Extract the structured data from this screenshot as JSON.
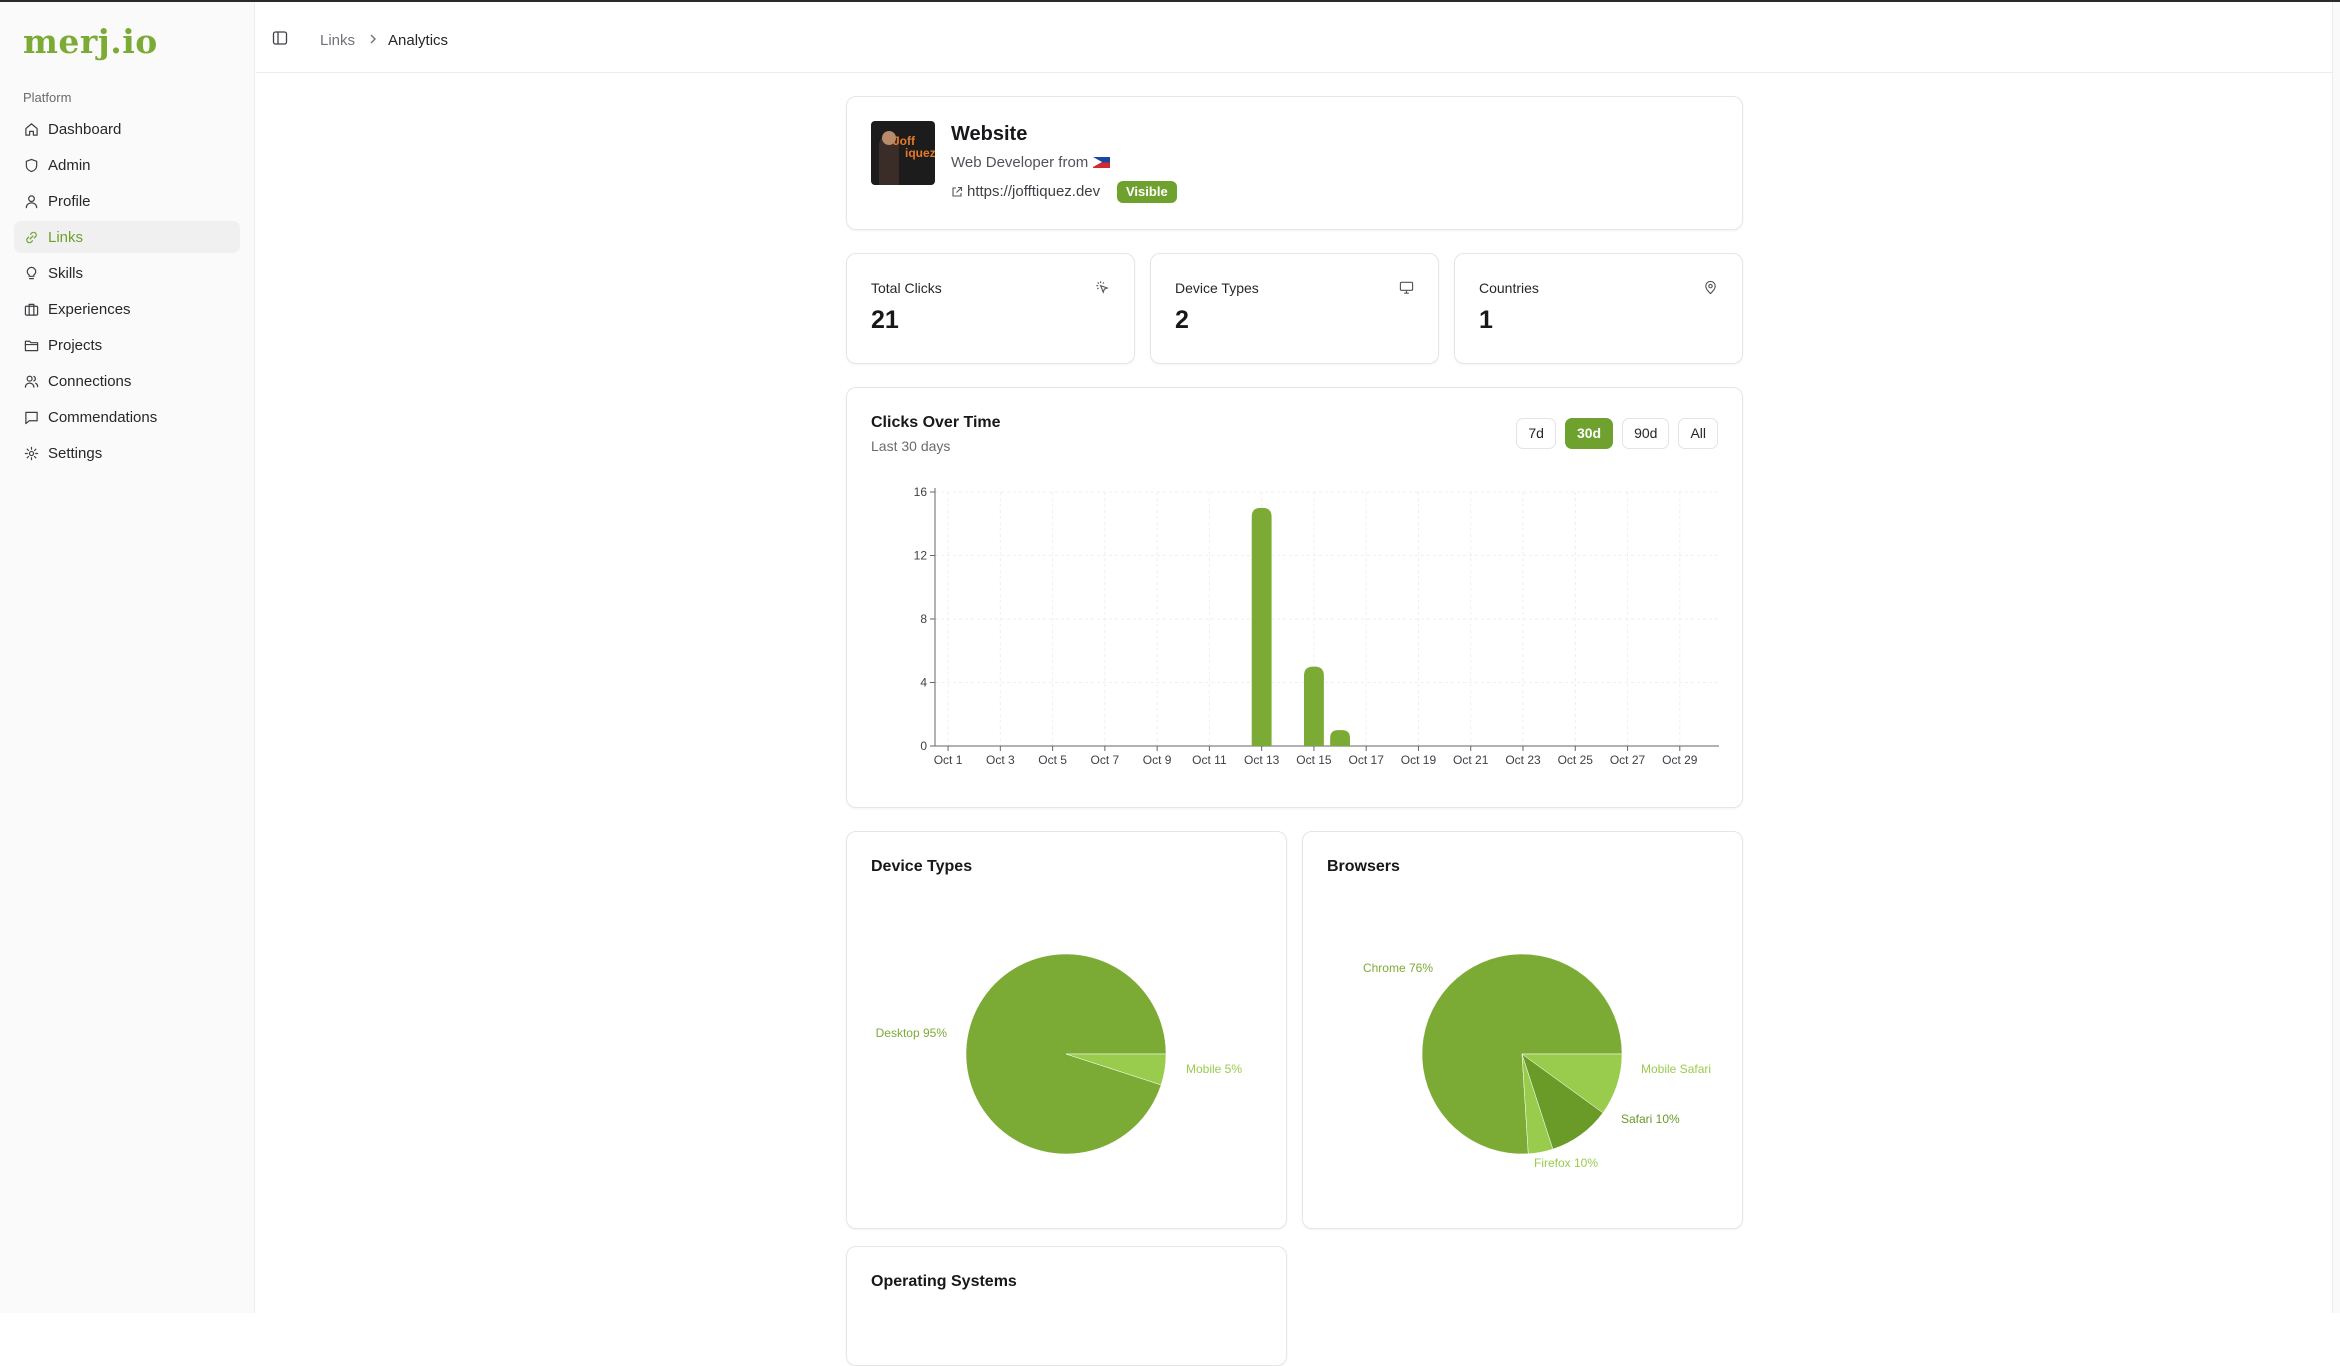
{
  "app": {
    "logo": "merj.io"
  },
  "sidebar": {
    "group_label": "Platform",
    "items": [
      {
        "label": "Dashboard",
        "icon": "home-icon",
        "active": false
      },
      {
        "label": "Admin",
        "icon": "shield-icon",
        "active": false
      },
      {
        "label": "Profile",
        "icon": "user-icon",
        "active": false
      },
      {
        "label": "Links",
        "icon": "link-icon",
        "active": true
      },
      {
        "label": "Skills",
        "icon": "lightbulb-icon",
        "active": false
      },
      {
        "label": "Experiences",
        "icon": "briefcase-icon",
        "active": false
      },
      {
        "label": "Projects",
        "icon": "folder-icon",
        "active": false
      },
      {
        "label": "Connections",
        "icon": "users-icon",
        "active": false
      },
      {
        "label": "Commendations",
        "icon": "message-icon",
        "active": false
      },
      {
        "label": "Settings",
        "icon": "gear-icon",
        "active": false
      }
    ]
  },
  "breadcrumb": {
    "parent": "Links",
    "current": "Analytics"
  },
  "profile": {
    "title": "Website",
    "subtitle": "Web Developer from",
    "url": "https://jofftiquez.dev",
    "badge": "Visible",
    "avatar_text_1": "Joff",
    "avatar_text_2": "iquez"
  },
  "stats": [
    {
      "label": "Total Clicks",
      "value": "21",
      "icon": "cursor-click-icon"
    },
    {
      "label": "Device Types",
      "value": "2",
      "icon": "monitor-icon"
    },
    {
      "label": "Countries",
      "value": "1",
      "icon": "map-pin-icon"
    }
  ],
  "clicks_card": {
    "title": "Clicks Over Time",
    "subtitle": "Last 30 days",
    "ranges": [
      "7d",
      "30d",
      "90d",
      "All"
    ],
    "active_range": "30d"
  },
  "device_card": {
    "title": "Device Types"
  },
  "browser_card": {
    "title": "Browsers"
  },
  "os_card": {
    "title": "Operating Systems"
  },
  "colors": {
    "accent": "#6ea12e",
    "bar": "#7cab35",
    "slice_light": "#99cc4d",
    "slice_dark": "#6a9a28"
  },
  "chart_data": [
    {
      "type": "bar",
      "title": "Clicks Over Time",
      "x": [
        "Oct 1",
        "Oct 2",
        "Oct 3",
        "Oct 4",
        "Oct 5",
        "Oct 6",
        "Oct 7",
        "Oct 8",
        "Oct 9",
        "Oct 10",
        "Oct 11",
        "Oct 12",
        "Oct 13",
        "Oct 14",
        "Oct 15",
        "Oct 16",
        "Oct 17",
        "Oct 18",
        "Oct 19",
        "Oct 20",
        "Oct 21",
        "Oct 22",
        "Oct 23",
        "Oct 24",
        "Oct 25",
        "Oct 26",
        "Oct 27",
        "Oct 28",
        "Oct 29",
        "Oct 30"
      ],
      "tick_labels": [
        "Oct 1",
        "Oct 3",
        "Oct 5",
        "Oct 7",
        "Oct 9",
        "Oct 11",
        "Oct 13",
        "Oct 15",
        "Oct 17",
        "Oct 19",
        "Oct 21",
        "Oct 23",
        "Oct 25",
        "Oct 27",
        "Oct 29"
      ],
      "values": [
        0,
        0,
        0,
        0,
        0,
        0,
        0,
        0,
        0,
        0,
        0,
        0,
        15,
        0,
        5,
        1,
        0,
        0,
        0,
        0,
        0,
        0,
        0,
        0,
        0,
        0,
        0,
        0,
        0,
        0
      ],
      "yticks": [
        0,
        4,
        8,
        12,
        16
      ],
      "ylim": [
        0,
        16
      ],
      "grid": true
    },
    {
      "type": "pie",
      "title": "Device Types",
      "slices": [
        {
          "label": "Desktop 95%",
          "value": 95
        },
        {
          "label": "Mobile 5%",
          "value": 5
        }
      ]
    },
    {
      "type": "pie",
      "title": "Browsers",
      "slices": [
        {
          "label": "Chrome 76%",
          "value": 76
        },
        {
          "label": "Mobile Safari",
          "value": 4
        },
        {
          "label": "Safari 10%",
          "value": 10
        },
        {
          "label": "Firefox 10%",
          "value": 10
        }
      ]
    }
  ]
}
